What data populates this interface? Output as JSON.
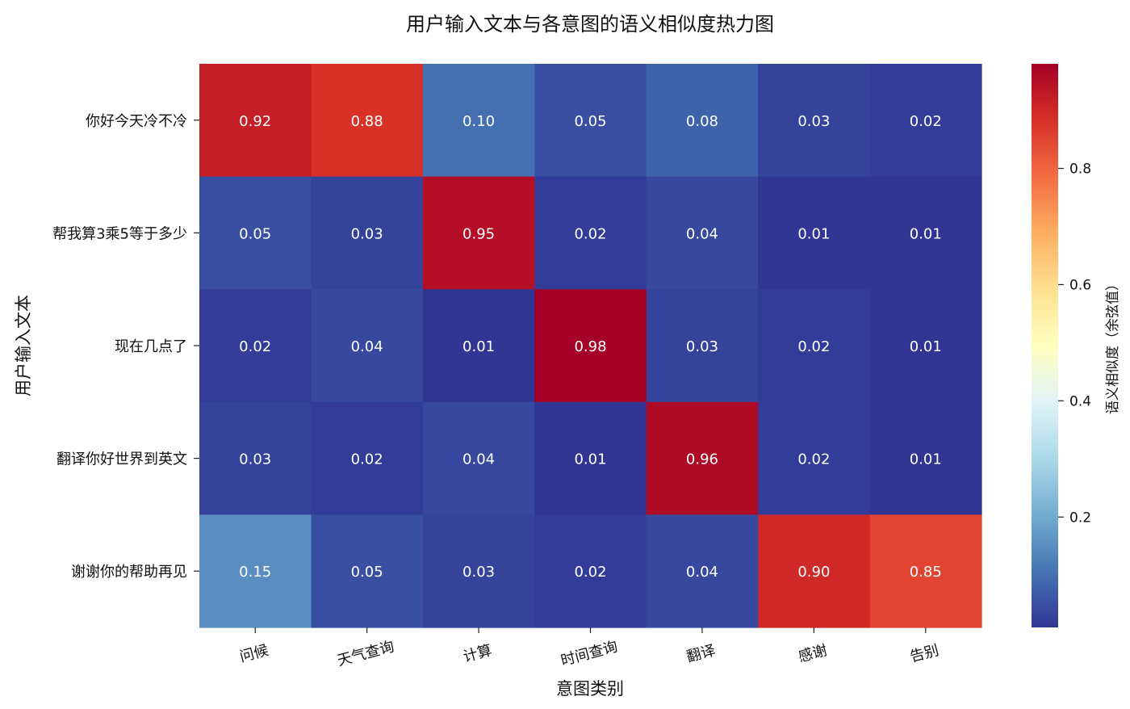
{
  "chart_data": {
    "type": "heatmap",
    "title": "用户输入文本与各意图的语义相似度热力图",
    "xlabel": "意图类别",
    "ylabel": "用户输入文本",
    "x_categories": [
      "问候",
      "天气查询",
      "计算",
      "时间查询",
      "翻译",
      "感谢",
      "告别"
    ],
    "y_categories": [
      "你好今天冷不冷",
      "帮我算3乘5等于多少",
      "现在几点了",
      "翻译你好世界到英文",
      "谢谢你的帮助再见"
    ],
    "values": [
      [
        0.92,
        0.88,
        0.1,
        0.05,
        0.08,
        0.03,
        0.02
      ],
      [
        0.05,
        0.03,
        0.95,
        0.02,
        0.04,
        0.01,
        0.01
      ],
      [
        0.02,
        0.04,
        0.01,
        0.98,
        0.03,
        0.02,
        0.01
      ],
      [
        0.03,
        0.02,
        0.04,
        0.01,
        0.96,
        0.02,
        0.01
      ],
      [
        0.15,
        0.05,
        0.03,
        0.02,
        0.04,
        0.9,
        0.85
      ]
    ],
    "colormap": "RdYlBu_r",
    "value_range": [
      0.01,
      0.98
    ],
    "colorbar": {
      "label": "语义相似度（余弦值）",
      "ticks": [
        0.2,
        0.4,
        0.6,
        0.8
      ],
      "tick_labels": [
        "0.2",
        "0.4",
        "0.6",
        "0.8"
      ]
    },
    "grid": false
  }
}
